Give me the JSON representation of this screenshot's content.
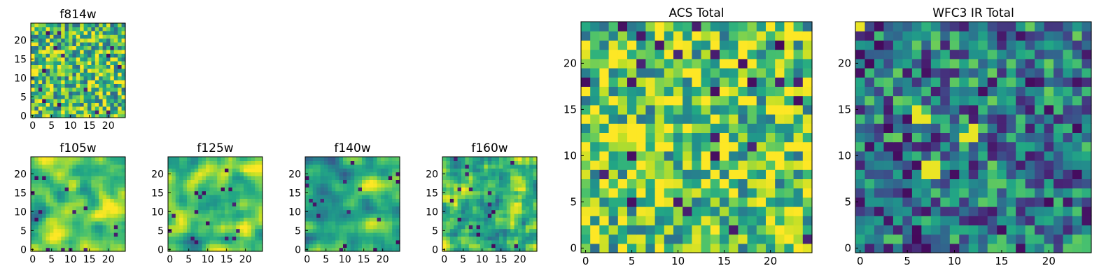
{
  "chart_data": [
    {
      "type": "heatmap",
      "title": "f814w",
      "grid_size": 25,
      "seed": 814,
      "vmin": 0,
      "vmax": 1,
      "colormap": "viridis",
      "palette_bias": 0.7,
      "xlim": [
        0,
        24
      ],
      "ylim": [
        0,
        24
      ],
      "x_ticks": [
        0,
        5,
        10,
        15,
        20
      ],
      "y_ticks": [
        0,
        5,
        10,
        15,
        20
      ],
      "smoothing": 0
    },
    {
      "type": "heatmap",
      "title": "f105w",
      "grid_size": 25,
      "seed": 105,
      "vmin": 0,
      "vmax": 1,
      "colormap": "viridis",
      "palette_bias": 0.72,
      "xlim": [
        0,
        24
      ],
      "ylim": [
        0,
        24
      ],
      "x_ticks": [
        0,
        5,
        10,
        15,
        20
      ],
      "y_ticks": [
        0,
        5,
        10,
        15,
        20
      ],
      "smoothing": 2
    },
    {
      "type": "heatmap",
      "title": "f125w",
      "grid_size": 25,
      "seed": 125,
      "vmin": 0,
      "vmax": 1,
      "colormap": "viridis",
      "palette_bias": 0.7,
      "xlim": [
        0,
        24
      ],
      "ylim": [
        0,
        24
      ],
      "x_ticks": [
        0,
        5,
        10,
        15,
        20
      ],
      "y_ticks": [
        0,
        5,
        10,
        15,
        20
      ],
      "smoothing": 2
    },
    {
      "type": "heatmap",
      "title": "f140w",
      "grid_size": 25,
      "seed": 140,
      "vmin": 0,
      "vmax": 1,
      "colormap": "viridis",
      "palette_bias": 0.66,
      "xlim": [
        0,
        24
      ],
      "ylim": [
        0,
        24
      ],
      "x_ticks": [
        0,
        5,
        10,
        15,
        20
      ],
      "y_ticks": [
        0,
        5,
        10,
        15,
        20
      ],
      "smoothing": 2
    },
    {
      "type": "heatmap",
      "title": "f160w",
      "grid_size": 25,
      "seed": 160,
      "vmin": 0,
      "vmax": 1,
      "colormap": "viridis",
      "palette_bias": 0.7,
      "xlim": [
        0,
        24
      ],
      "ylim": [
        0,
        24
      ],
      "x_ticks": [
        0,
        5,
        10,
        15,
        20
      ],
      "y_ticks": [
        0,
        5,
        10,
        15,
        20
      ],
      "smoothing": 1
    },
    {
      "type": "heatmap",
      "title": "ACS Total",
      "grid_size": 25,
      "seed": 901,
      "vmin": 0,
      "vmax": 1,
      "colormap": "viridis",
      "palette_bias": 0.74,
      "xlim": [
        0,
        24
      ],
      "ylim": [
        0,
        24
      ],
      "x_ticks": [
        0,
        5,
        10,
        15,
        20
      ],
      "y_ticks": [
        0,
        5,
        10,
        15,
        20
      ],
      "smoothing": 0
    },
    {
      "type": "heatmap",
      "title": "WFC3 IR Total",
      "grid_size": 25,
      "seed": 902,
      "vmin": 0,
      "vmax": 1,
      "colormap": "viridis",
      "palette_bias": 0.4,
      "xlim": [
        0,
        24
      ],
      "ylim": [
        0,
        24
      ],
      "x_ticks": [
        0,
        5,
        10,
        15,
        20
      ],
      "y_ticks": [
        0,
        5,
        10,
        15,
        20
      ],
      "smoothing": 0,
      "hotspots": [
        [
          6,
          14
        ],
        [
          7,
          14
        ],
        [
          6,
          15
        ],
        [
          11,
          12
        ],
        [
          12,
          12
        ],
        [
          12,
          13
        ],
        [
          7,
          8
        ],
        [
          8,
          8
        ],
        [
          7,
          9
        ],
        [
          8,
          9
        ],
        [
          0,
          24
        ]
      ]
    }
  ],
  "colors": {
    "viridis": [
      "#440154",
      "#482475",
      "#414487",
      "#355f8d",
      "#2a788e",
      "#21918c",
      "#22a884",
      "#44bf70",
      "#7ad151",
      "#bddf26",
      "#fde725"
    ],
    "axes_frame": "#000000",
    "background": "#ffffff"
  }
}
